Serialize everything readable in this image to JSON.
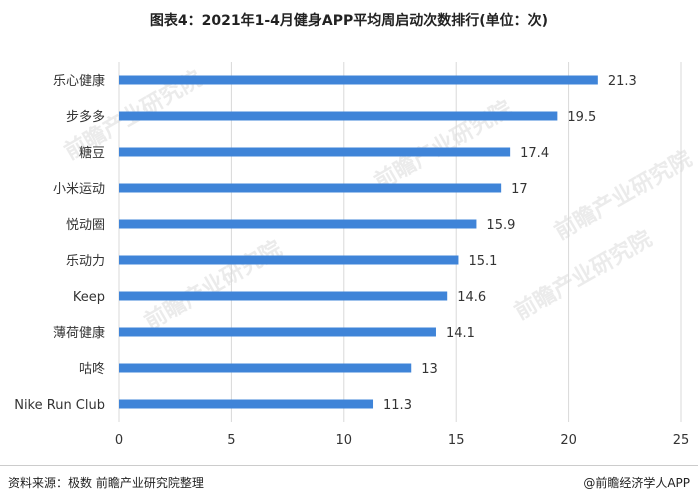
{
  "title": "图表4：2021年1-4月健身APP平均周启动次数排行(单位：次)",
  "source": "资料来源：极数 前瞻产业研究院整理",
  "brand": "@前瞻经济学人APP",
  "watermark": "前瞻产业研究院",
  "chart_data": {
    "type": "bar",
    "orientation": "horizontal",
    "categories": [
      "乐心健康",
      "步多多",
      "糖豆",
      "小米运动",
      "悦动圈",
      "乐动力",
      "Keep",
      "薄荷健康",
      "咕咚",
      "Nike Run Club"
    ],
    "values": [
      21.3,
      19.5,
      17.4,
      17,
      15.9,
      15.1,
      14.6,
      14.1,
      13,
      11.3
    ],
    "value_labels": [
      "21.3",
      "19.5",
      "17.4",
      "17",
      "15.9",
      "15.1",
      "14.6",
      "14.1",
      "13",
      "11.3"
    ],
    "xlim": [
      0,
      25
    ],
    "xticks": [
      0,
      5,
      10,
      15,
      20,
      25
    ],
    "grid": true,
    "bar_color": "#3f84d8",
    "grid_color": "#d9d9d9"
  }
}
